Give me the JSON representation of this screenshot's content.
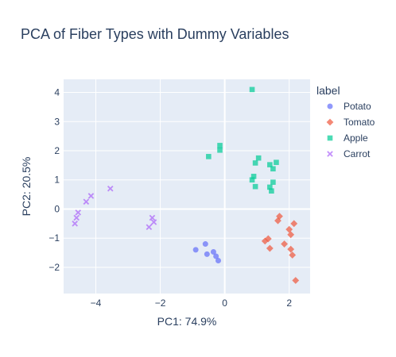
{
  "chart_data": {
    "type": "scatter",
    "title": "PCA of Fiber Types with Dummy Variables",
    "xlabel": "PC1: 74.9%",
    "ylabel": "PC2: 20.5%",
    "xlim": [
      -5.0,
      2.65
    ],
    "ylim": [
      -2.9,
      4.45
    ],
    "xticks": [
      -4,
      -2,
      0,
      2
    ],
    "xtick_labels": [
      "−4",
      "−2",
      "0",
      "2"
    ],
    "yticks": [
      -2,
      -1,
      0,
      1,
      2,
      3,
      4
    ],
    "ytick_labels": [
      "−2",
      "−1",
      "0",
      "1",
      "2",
      "3",
      "4"
    ],
    "grid": true,
    "legend_title": "label",
    "legend_position": "right",
    "series": [
      {
        "name": "Potato",
        "color": "#636efa",
        "symbol": "circle",
        "points": [
          [
            -0.9,
            -1.4
          ],
          [
            -0.6,
            -1.2
          ],
          [
            -0.55,
            -1.55
          ],
          [
            -0.35,
            -1.47
          ],
          [
            -0.27,
            -1.62
          ],
          [
            -0.2,
            -1.77
          ]
        ]
      },
      {
        "name": "Tomato",
        "color": "#ef553b",
        "symbol": "diamond",
        "points": [
          [
            1.65,
            -0.4
          ],
          [
            1.7,
            -0.25
          ],
          [
            1.25,
            -1.1
          ],
          [
            1.35,
            -1.02
          ],
          [
            1.4,
            -1.35
          ],
          [
            1.85,
            -1.2
          ],
          [
            2.0,
            -0.7
          ],
          [
            2.05,
            -0.88
          ],
          [
            2.15,
            -0.5
          ],
          [
            2.05,
            -1.38
          ],
          [
            2.1,
            -1.58
          ],
          [
            2.2,
            -2.45
          ]
        ]
      },
      {
        "name": "Apple",
        "color": "#00cc96",
        "symbol": "square",
        "points": [
          [
            0.85,
            4.1
          ],
          [
            -0.15,
            2.18
          ],
          [
            -0.15,
            2.02
          ],
          [
            -0.5,
            1.8
          ],
          [
            1.05,
            1.75
          ],
          [
            0.95,
            1.58
          ],
          [
            1.4,
            1.52
          ],
          [
            1.6,
            1.6
          ],
          [
            1.5,
            1.38
          ],
          [
            0.9,
            1.12
          ],
          [
            0.85,
            1.0
          ],
          [
            1.5,
            0.92
          ],
          [
            0.95,
            0.77
          ],
          [
            1.4,
            0.75
          ],
          [
            1.45,
            0.62
          ]
        ]
      },
      {
        "name": "Carrot",
        "color": "#ab63fa",
        "symbol": "x",
        "points": [
          [
            -3.55,
            0.7
          ],
          [
            -4.15,
            0.45
          ],
          [
            -4.3,
            0.25
          ],
          [
            -4.55,
            -0.12
          ],
          [
            -4.6,
            -0.3
          ],
          [
            -4.65,
            -0.5
          ],
          [
            -2.25,
            -0.3
          ],
          [
            -2.2,
            -0.45
          ],
          [
            -2.35,
            -0.62
          ]
        ]
      }
    ]
  }
}
